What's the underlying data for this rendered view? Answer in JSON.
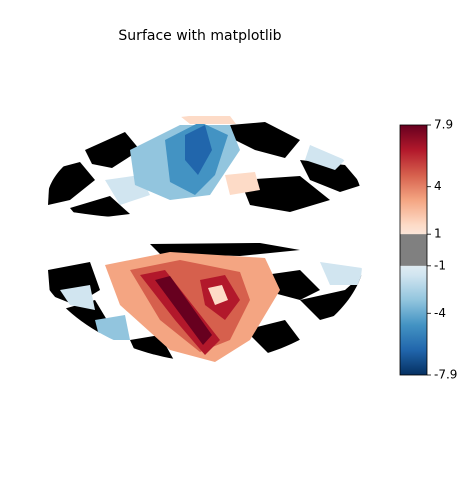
{
  "chart_data": {
    "type": "surface",
    "title": "Surface with matplotlib",
    "colorbar": {
      "vlim": [
        -7.9,
        7.9
      ],
      "ticks": [
        -7.9,
        -4,
        -1,
        1,
        4,
        7.9
      ],
      "threshold": 1,
      "threshold_color": "#808080",
      "colormap": [
        "#053061",
        "#2166ac",
        "#4393c3",
        "#92c5de",
        "#d1e5f0",
        "#f7f7f7",
        "#fddbc7",
        "#f4a582",
        "#d6604d",
        "#b2182b",
        "#67001f"
      ]
    }
  }
}
